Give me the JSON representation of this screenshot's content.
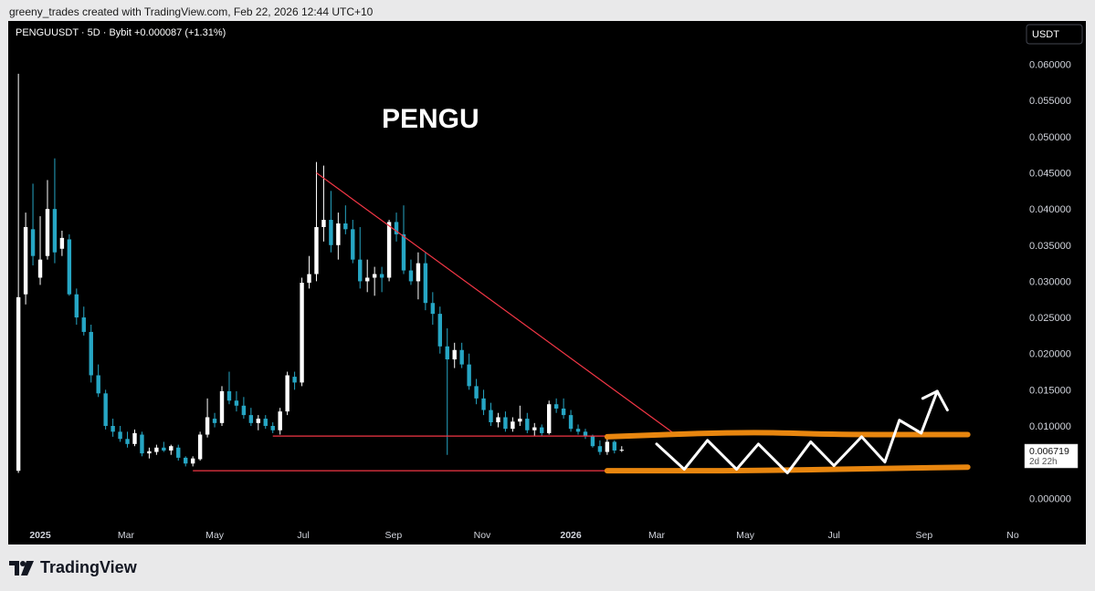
{
  "credit": "greeny_trades created with TradingView.com, Feb 22, 2026 12:44 UTC+10",
  "brand": "TradingView",
  "chart_data": {
    "type": "candlestick",
    "symbol_line": "PENGUUSDT · 5D · Bybit  +0.000087 (+1.31%)",
    "currency_label": "USDT",
    "annotation_title": "PENGU",
    "y_axis": {
      "ylim": [
        -0.004,
        0.066
      ],
      "ticks": [
        "0.060000",
        "0.055000",
        "0.050000",
        "0.045000",
        "0.040000",
        "0.035000",
        "0.030000",
        "0.025000",
        "0.020000",
        "0.015000",
        "0.010000",
        "0.000000"
      ]
    },
    "x_axis": {
      "range": [
        "2024-12-10",
        "2026-11-01"
      ],
      "ticks": [
        {
          "date": "2025-01-01",
          "label": "2025",
          "bold": true
        },
        {
          "date": "2025-03-01",
          "label": "Mar"
        },
        {
          "date": "2025-05-01",
          "label": "May"
        },
        {
          "date": "2025-07-01",
          "label": "Jul"
        },
        {
          "date": "2025-09-01",
          "label": "Sep"
        },
        {
          "date": "2025-11-01",
          "label": "Nov"
        },
        {
          "date": "2026-01-01",
          "label": "2026",
          "bold": true
        },
        {
          "date": "2026-03-01",
          "label": "Mar"
        },
        {
          "date": "2026-05-01",
          "label": "May"
        },
        {
          "date": "2026-07-01",
          "label": "Jul"
        },
        {
          "date": "2026-09-01",
          "label": "Sep"
        },
        {
          "date": "2026-11-01",
          "label": "No"
        }
      ]
    },
    "last_price": {
      "value": 0.006719,
      "label": "0.006719",
      "countdown": "2d 22h"
    },
    "colors": {
      "up": "#ffffff",
      "down": "#26a6c4",
      "trendline": "#f23645",
      "zone": "#e8860f",
      "projection": "#ffffff"
    },
    "candles": [
      {
        "date": "2024-12-17",
        "o": 0.0038,
        "h": 0.0587,
        "l": 0.0035,
        "c": 0.0278
      },
      {
        "date": "2024-12-22",
        "o": 0.0282,
        "h": 0.0395,
        "l": 0.0268,
        "c": 0.0375
      },
      {
        "date": "2024-12-27",
        "o": 0.0372,
        "h": 0.0435,
        "l": 0.0322,
        "c": 0.0335
      },
      {
        "date": "2025-01-01",
        "o": 0.0305,
        "h": 0.039,
        "l": 0.0295,
        "c": 0.033
      },
      {
        "date": "2025-01-06",
        "o": 0.0335,
        "h": 0.044,
        "l": 0.033,
        "c": 0.04
      },
      {
        "date": "2025-01-11",
        "o": 0.04,
        "h": 0.047,
        "l": 0.0325,
        "c": 0.034
      },
      {
        "date": "2025-01-16",
        "o": 0.0345,
        "h": 0.037,
        "l": 0.0335,
        "c": 0.036
      },
      {
        "date": "2025-01-21",
        "o": 0.0358,
        "h": 0.0365,
        "l": 0.028,
        "c": 0.0282
      },
      {
        "date": "2025-01-26",
        "o": 0.0282,
        "h": 0.029,
        "l": 0.024,
        "c": 0.025
      },
      {
        "date": "2025-01-31",
        "o": 0.025,
        "h": 0.0265,
        "l": 0.0225,
        "c": 0.023
      },
      {
        "date": "2025-02-05",
        "o": 0.023,
        "h": 0.024,
        "l": 0.016,
        "c": 0.017
      },
      {
        "date": "2025-02-10",
        "o": 0.017,
        "h": 0.0185,
        "l": 0.014,
        "c": 0.0145
      },
      {
        "date": "2025-02-15",
        "o": 0.0145,
        "h": 0.015,
        "l": 0.0095,
        "c": 0.01
      },
      {
        "date": "2025-02-20",
        "o": 0.01,
        "h": 0.011,
        "l": 0.0085,
        "c": 0.0092
      },
      {
        "date": "2025-02-25",
        "o": 0.0092,
        "h": 0.01,
        "l": 0.0078,
        "c": 0.0082
      },
      {
        "date": "2025-03-02",
        "o": 0.0082,
        "h": 0.0092,
        "l": 0.007,
        "c": 0.0075
      },
      {
        "date": "2025-03-07",
        "o": 0.0075,
        "h": 0.0095,
        "l": 0.0072,
        "c": 0.009
      },
      {
        "date": "2025-03-12",
        "o": 0.0088,
        "h": 0.0092,
        "l": 0.0058,
        "c": 0.0062
      },
      {
        "date": "2025-03-17",
        "o": 0.0062,
        "h": 0.007,
        "l": 0.0055,
        "c": 0.0065
      },
      {
        "date": "2025-03-22",
        "o": 0.0064,
        "h": 0.0074,
        "l": 0.006,
        "c": 0.007
      },
      {
        "date": "2025-03-27",
        "o": 0.007,
        "h": 0.0078,
        "l": 0.0064,
        "c": 0.0066
      },
      {
        "date": "2025-04-01",
        "o": 0.0066,
        "h": 0.0074,
        "l": 0.006,
        "c": 0.0072
      },
      {
        "date": "2025-04-06",
        "o": 0.007,
        "h": 0.0074,
        "l": 0.0052,
        "c": 0.0056
      },
      {
        "date": "2025-04-11",
        "o": 0.0056,
        "h": 0.0058,
        "l": 0.0044,
        "c": 0.0048
      },
      {
        "date": "2025-04-16",
        "o": 0.0048,
        "h": 0.0058,
        "l": 0.0044,
        "c": 0.0055
      },
      {
        "date": "2025-04-21",
        "o": 0.0054,
        "h": 0.0092,
        "l": 0.0052,
        "c": 0.0088
      },
      {
        "date": "2025-04-26",
        "o": 0.0088,
        "h": 0.0138,
        "l": 0.0084,
        "c": 0.0112
      },
      {
        "date": "2025-05-01",
        "o": 0.011,
        "h": 0.0118,
        "l": 0.0098,
        "c": 0.0104
      },
      {
        "date": "2025-05-06",
        "o": 0.0104,
        "h": 0.0155,
        "l": 0.01,
        "c": 0.0148
      },
      {
        "date": "2025-05-11",
        "o": 0.0148,
        "h": 0.0175,
        "l": 0.013,
        "c": 0.0135
      },
      {
        "date": "2025-05-16",
        "o": 0.0135,
        "h": 0.0148,
        "l": 0.012,
        "c": 0.0128
      },
      {
        "date": "2025-05-21",
        "o": 0.0128,
        "h": 0.014,
        "l": 0.011,
        "c": 0.0115
      },
      {
        "date": "2025-05-26",
        "o": 0.0115,
        "h": 0.0125,
        "l": 0.01,
        "c": 0.0104
      },
      {
        "date": "2025-05-31",
        "o": 0.0104,
        "h": 0.0115,
        "l": 0.0094,
        "c": 0.011
      },
      {
        "date": "2025-06-05",
        "o": 0.011,
        "h": 0.0115,
        "l": 0.0096,
        "c": 0.01
      },
      {
        "date": "2025-06-10",
        "o": 0.01,
        "h": 0.0105,
        "l": 0.009,
        "c": 0.0094
      },
      {
        "date": "2025-06-15",
        "o": 0.0094,
        "h": 0.0125,
        "l": 0.0088,
        "c": 0.012
      },
      {
        "date": "2025-06-20",
        "o": 0.012,
        "h": 0.0175,
        "l": 0.0115,
        "c": 0.017
      },
      {
        "date": "2025-06-25",
        "o": 0.0168,
        "h": 0.0175,
        "l": 0.015,
        "c": 0.016
      },
      {
        "date": "2025-06-30",
        "o": 0.016,
        "h": 0.0305,
        "l": 0.0155,
        "c": 0.0298
      },
      {
        "date": "2025-07-05",
        "o": 0.0298,
        "h": 0.0335,
        "l": 0.029,
        "c": 0.031
      },
      {
        "date": "2025-07-10",
        "o": 0.031,
        "h": 0.0465,
        "l": 0.03,
        "c": 0.0375
      },
      {
        "date": "2025-07-15",
        "o": 0.0375,
        "h": 0.046,
        "l": 0.0355,
        "c": 0.0385
      },
      {
        "date": "2025-07-20",
        "o": 0.0385,
        "h": 0.0425,
        "l": 0.034,
        "c": 0.035
      },
      {
        "date": "2025-07-25",
        "o": 0.035,
        "h": 0.0395,
        "l": 0.033,
        "c": 0.038
      },
      {
        "date": "2025-07-30",
        "o": 0.038,
        "h": 0.0405,
        "l": 0.0365,
        "c": 0.0372
      },
      {
        "date": "2025-08-04",
        "o": 0.0372,
        "h": 0.0385,
        "l": 0.0325,
        "c": 0.033
      },
      {
        "date": "2025-08-09",
        "o": 0.033,
        "h": 0.0375,
        "l": 0.029,
        "c": 0.03
      },
      {
        "date": "2025-08-14",
        "o": 0.03,
        "h": 0.033,
        "l": 0.0285,
        "c": 0.0305
      },
      {
        "date": "2025-08-19",
        "o": 0.0305,
        "h": 0.032,
        "l": 0.028,
        "c": 0.031
      },
      {
        "date": "2025-08-24",
        "o": 0.031,
        "h": 0.032,
        "l": 0.0285,
        "c": 0.0305
      },
      {
        "date": "2025-08-29",
        "o": 0.0305,
        "h": 0.0385,
        "l": 0.03,
        "c": 0.0382
      },
      {
        "date": "2025-09-03",
        "o": 0.0382,
        "h": 0.0395,
        "l": 0.0355,
        "c": 0.0365
      },
      {
        "date": "2025-09-08",
        "o": 0.0365,
        "h": 0.0405,
        "l": 0.031,
        "c": 0.0315
      },
      {
        "date": "2025-09-13",
        "o": 0.0315,
        "h": 0.033,
        "l": 0.0295,
        "c": 0.03
      },
      {
        "date": "2025-09-18",
        "o": 0.03,
        "h": 0.034,
        "l": 0.0275,
        "c": 0.0325
      },
      {
        "date": "2025-09-23",
        "o": 0.0325,
        "h": 0.034,
        "l": 0.026,
        "c": 0.027
      },
      {
        "date": "2025-09-28",
        "o": 0.027,
        "h": 0.0285,
        "l": 0.024,
        "c": 0.0255
      },
      {
        "date": "2025-10-03",
        "o": 0.0255,
        "h": 0.0265,
        "l": 0.02,
        "c": 0.021
      },
      {
        "date": "2025-10-08",
        "o": 0.021,
        "h": 0.0235,
        "l": 0.006,
        "c": 0.0192
      },
      {
        "date": "2025-10-13",
        "o": 0.0192,
        "h": 0.0215,
        "l": 0.018,
        "c": 0.0205
      },
      {
        "date": "2025-10-18",
        "o": 0.0205,
        "h": 0.0215,
        "l": 0.018,
        "c": 0.0185
      },
      {
        "date": "2025-10-23",
        "o": 0.0185,
        "h": 0.02,
        "l": 0.015,
        "c": 0.0155
      },
      {
        "date": "2025-10-28",
        "o": 0.0155,
        "h": 0.0165,
        "l": 0.013,
        "c": 0.0138
      },
      {
        "date": "2025-11-02",
        "o": 0.0138,
        "h": 0.015,
        "l": 0.0115,
        "c": 0.0122
      },
      {
        "date": "2025-11-07",
        "o": 0.0122,
        "h": 0.0132,
        "l": 0.01,
        "c": 0.0105
      },
      {
        "date": "2025-11-12",
        "o": 0.0105,
        "h": 0.0118,
        "l": 0.0098,
        "c": 0.0112
      },
      {
        "date": "2025-11-17",
        "o": 0.0112,
        "h": 0.012,
        "l": 0.0092,
        "c": 0.0096
      },
      {
        "date": "2025-11-22",
        "o": 0.0096,
        "h": 0.0112,
        "l": 0.0092,
        "c": 0.0106
      },
      {
        "date": "2025-11-27",
        "o": 0.0106,
        "h": 0.0128,
        "l": 0.01,
        "c": 0.011
      },
      {
        "date": "2025-12-02",
        "o": 0.011,
        "h": 0.0118,
        "l": 0.009,
        "c": 0.0094
      },
      {
        "date": "2025-12-07",
        "o": 0.0094,
        "h": 0.0104,
        "l": 0.0086,
        "c": 0.0098
      },
      {
        "date": "2025-12-12",
        "o": 0.0098,
        "h": 0.0102,
        "l": 0.0086,
        "c": 0.009
      },
      {
        "date": "2025-12-17",
        "o": 0.009,
        "h": 0.0135,
        "l": 0.0088,
        "c": 0.013
      },
      {
        "date": "2025-12-22",
        "o": 0.013,
        "h": 0.0138,
        "l": 0.0118,
        "c": 0.0124
      },
      {
        "date": "2025-12-27",
        "o": 0.0124,
        "h": 0.0138,
        "l": 0.011,
        "c": 0.0115
      },
      {
        "date": "2026-01-01",
        "o": 0.0115,
        "h": 0.0122,
        "l": 0.0092,
        "c": 0.0096
      },
      {
        "date": "2026-01-06",
        "o": 0.0096,
        "h": 0.0102,
        "l": 0.0088,
        "c": 0.0092
      },
      {
        "date": "2026-01-11",
        "o": 0.0092,
        "h": 0.0096,
        "l": 0.0082,
        "c": 0.0086
      },
      {
        "date": "2026-01-16",
        "o": 0.0086,
        "h": 0.0088,
        "l": 0.007,
        "c": 0.0072
      },
      {
        "date": "2026-01-21",
        "o": 0.0072,
        "h": 0.008,
        "l": 0.006,
        "c": 0.0064
      },
      {
        "date": "2026-01-26",
        "o": 0.0064,
        "h": 0.0082,
        "l": 0.006,
        "c": 0.0078
      },
      {
        "date": "2026-01-31",
        "o": 0.0078,
        "h": 0.008,
        "l": 0.0062,
        "c": 0.0066
      },
      {
        "date": "2026-02-05",
        "o": 0.0066,
        "h": 0.0072,
        "l": 0.0064,
        "c": 0.0067
      }
    ],
    "trendlines": [
      {
        "name": "descending-resistance",
        "from": {
          "date": "2025-07-10",
          "value": 0.045
        },
        "to": {
          "date": "2026-03-14",
          "value": 0.0088
        }
      },
      {
        "name": "horizontal-level-upper",
        "from": {
          "date": "2025-06-10",
          "value": 0.0086
        },
        "to": {
          "date": "2026-02-05",
          "value": 0.0086
        }
      },
      {
        "name": "horizontal-level-lower",
        "from": {
          "date": "2025-04-16",
          "value": 0.0038
        },
        "to": {
          "date": "2026-02-05",
          "value": 0.0038
        }
      }
    ],
    "zone_lines": [
      {
        "name": "zone-upper",
        "points": [
          {
            "date": "2026-01-26",
            "value": 0.0085
          },
          {
            "date": "2026-05-01",
            "value": 0.0092
          },
          {
            "date": "2026-07-01",
            "value": 0.0088
          },
          {
            "date": "2026-10-01",
            "value": 0.0088
          }
        ]
      },
      {
        "name": "zone-lower",
        "points": [
          {
            "date": "2026-01-26",
            "value": 0.0038
          },
          {
            "date": "2026-05-01",
            "value": 0.0038
          },
          {
            "date": "2026-07-01",
            "value": 0.004
          },
          {
            "date": "2026-10-01",
            "value": 0.0043
          }
        ]
      }
    ],
    "projection_path": [
      {
        "date": "2026-03-01",
        "value": 0.0075
      },
      {
        "date": "2026-03-20",
        "value": 0.004
      },
      {
        "date": "2026-04-05",
        "value": 0.008
      },
      {
        "date": "2026-04-25",
        "value": 0.004
      },
      {
        "date": "2026-05-10",
        "value": 0.0075
      },
      {
        "date": "2026-05-30",
        "value": 0.0035
      },
      {
        "date": "2026-06-15",
        "value": 0.0078
      },
      {
        "date": "2026-07-01",
        "value": 0.0045
      },
      {
        "date": "2026-07-20",
        "value": 0.0085
      },
      {
        "date": "2026-08-05",
        "value": 0.005
      },
      {
        "date": "2026-08-15",
        "value": 0.0108
      },
      {
        "date": "2026-08-30",
        "value": 0.009
      },
      {
        "date": "2026-09-10",
        "value": 0.0148
      }
    ],
    "projection_arrow": {
      "tip": {
        "date": "2026-09-10",
        "value": 0.0148
      },
      "left": {
        "date": "2026-08-31",
        "value": 0.0138
      },
      "right": {
        "date": "2026-09-17",
        "value": 0.0122
      }
    }
  }
}
